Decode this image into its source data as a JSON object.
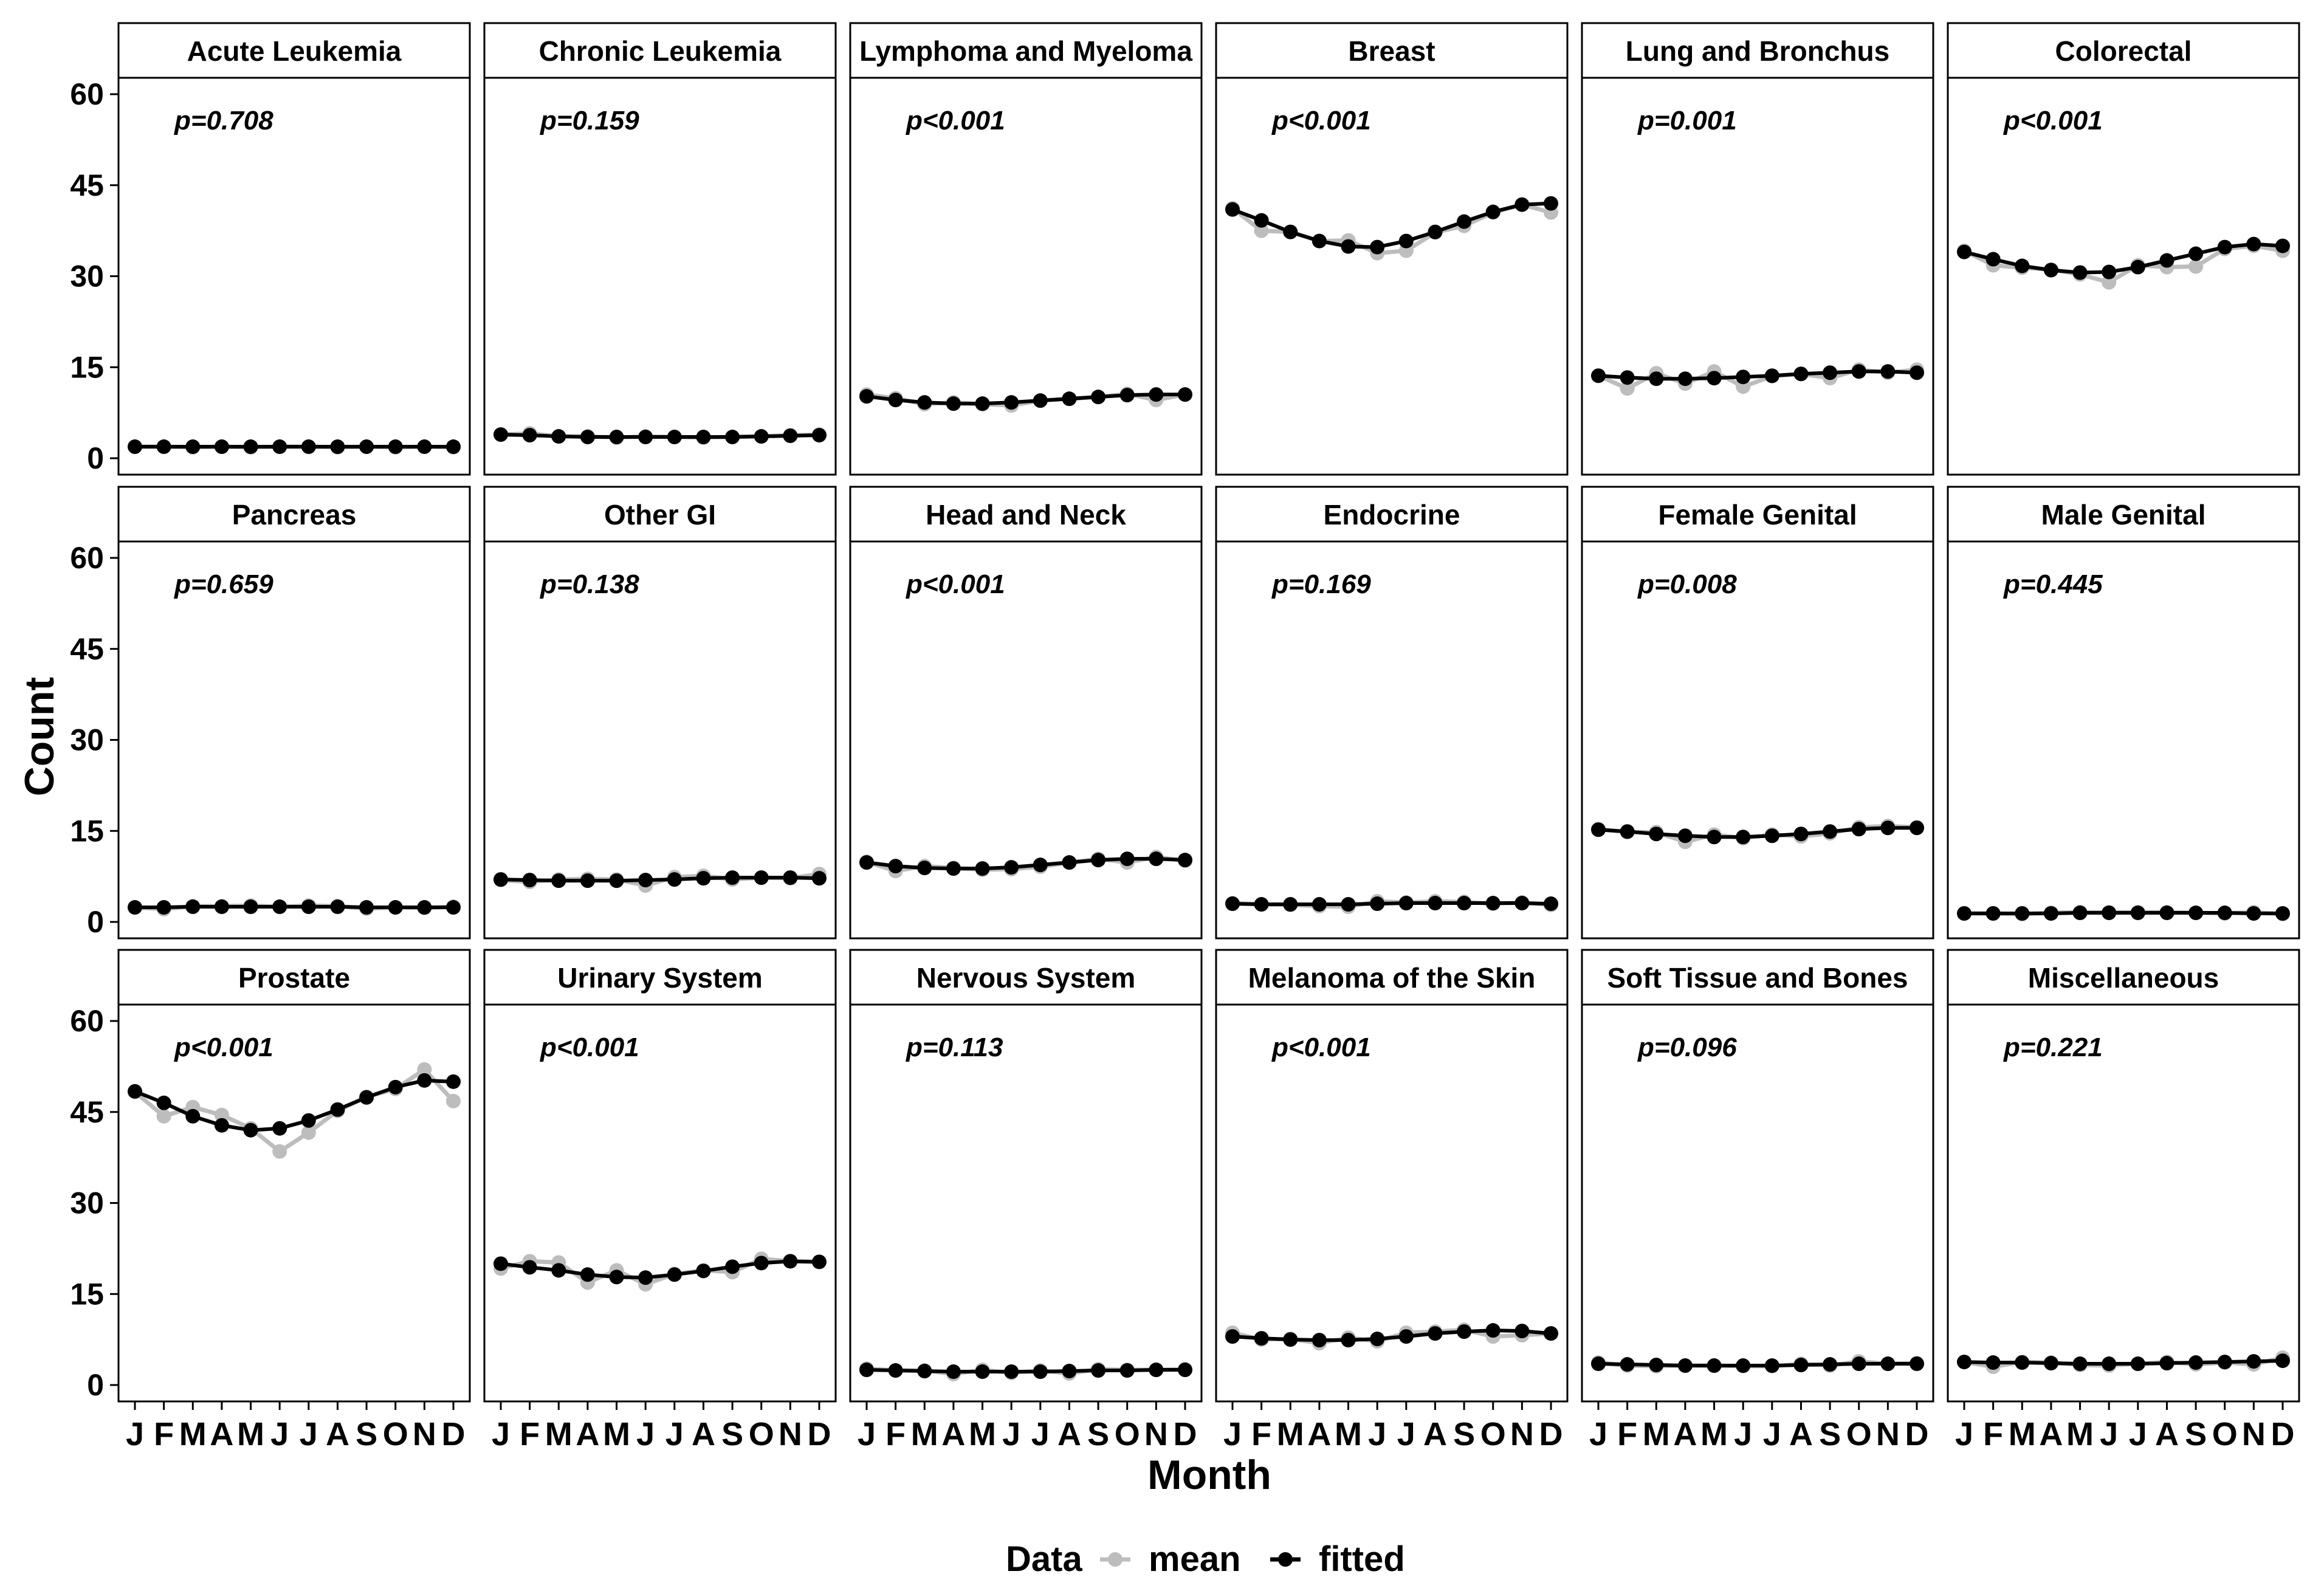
{
  "chart_data": {
    "type": "line",
    "xlabel": "Month",
    "ylabel": "Count",
    "ylim": [
      0,
      60
    ],
    "yticks": [
      0,
      15,
      30,
      45,
      60
    ],
    "grid": false,
    "legend": {
      "title": "Data",
      "position": "bottom",
      "entries": [
        {
          "name": "mean",
          "color": "#bdbdbd"
        },
        {
          "name": "fitted",
          "color": "#000000"
        }
      ]
    },
    "months": [
      "J",
      "F",
      "M",
      "A",
      "M",
      "J",
      "J",
      "A",
      "S",
      "O",
      "N",
      "D"
    ],
    "panels": [
      {
        "title": "Acute Leukemia",
        "pvalue": "p=0.708",
        "mean": [
          1.9,
          1.9,
          1.8,
          1.9,
          1.8,
          1.9,
          1.9,
          1.8,
          1.9,
          1.8,
          1.9,
          1.8
        ],
        "fitted": [
          1.9,
          1.9,
          1.9,
          1.9,
          1.9,
          1.9,
          1.9,
          1.9,
          1.9,
          1.9,
          1.9,
          1.9
        ]
      },
      {
        "title": "Chronic Leukemia",
        "pvalue": "p=0.159",
        "mean": [
          3.9,
          4.1,
          3.6,
          3.6,
          3.4,
          3.6,
          3.5,
          3.4,
          3.5,
          3.6,
          3.8,
          3.9
        ],
        "fitted": [
          3.9,
          3.8,
          3.6,
          3.5,
          3.5,
          3.5,
          3.5,
          3.5,
          3.5,
          3.6,
          3.7,
          3.8
        ]
      },
      {
        "title": "Lymphoma and Myeloma",
        "pvalue": "p<0.001",
        "mean": [
          10.5,
          9.9,
          8.9,
          9.2,
          8.9,
          8.7,
          9.5,
          9.8,
          10.1,
          10.6,
          9.6,
          10.5
        ],
        "fitted": [
          10.2,
          9.6,
          9.2,
          9.0,
          9.0,
          9.2,
          9.5,
          9.8,
          10.1,
          10.4,
          10.5,
          10.5
        ]
      },
      {
        "title": "Breast",
        "pvalue": "p<0.001",
        "mean": [
          41.2,
          37.5,
          37.3,
          35.8,
          35.9,
          33.8,
          34.2,
          37.2,
          38.3,
          40.5,
          41.8,
          40.5
        ],
        "fitted": [
          41.0,
          39.2,
          37.3,
          35.8,
          34.9,
          34.8,
          35.8,
          37.3,
          39.0,
          40.6,
          41.8,
          42.0
        ]
      },
      {
        "title": "Lung and Bronchus",
        "pvalue": "p=0.001",
        "mean": [
          13.6,
          11.5,
          14.0,
          12.3,
          14.3,
          11.8,
          13.5,
          13.9,
          13.2,
          14.6,
          14.1,
          14.6
        ],
        "fitted": [
          13.6,
          13.3,
          13.1,
          13.1,
          13.2,
          13.4,
          13.6,
          13.9,
          14.1,
          14.3,
          14.3,
          14.1
        ]
      },
      {
        "title": "Colorectal",
        "pvalue": "p<0.001",
        "mean": [
          34.2,
          31.8,
          31.4,
          31.1,
          30.3,
          29.0,
          31.8,
          31.5,
          31.6,
          34.5,
          35.0,
          34.2
        ],
        "fitted": [
          34.0,
          32.8,
          31.7,
          31.0,
          30.6,
          30.7,
          31.5,
          32.6,
          33.7,
          34.8,
          35.3,
          35.0
        ]
      },
      {
        "title": "Pancreas",
        "pvalue": "p=0.659",
        "mean": [
          2.4,
          2.1,
          2.6,
          2.6,
          2.7,
          2.5,
          2.7,
          2.6,
          2.2,
          2.4,
          2.3,
          2.5
        ],
        "fitted": [
          2.4,
          2.4,
          2.5,
          2.5,
          2.5,
          2.5,
          2.5,
          2.5,
          2.4,
          2.4,
          2.4,
          2.4
        ]
      },
      {
        "title": "Other GI",
        "pvalue": "p=0.138",
        "mean": [
          6.9,
          6.6,
          7.0,
          7.1,
          7.0,
          6.0,
          7.4,
          7.6,
          7.0,
          7.3,
          7.2,
          7.9
        ],
        "fitted": [
          7.0,
          6.9,
          6.8,
          6.8,
          6.8,
          6.9,
          7.0,
          7.2,
          7.3,
          7.3,
          7.3,
          7.2
        ]
      },
      {
        "title": "Head and Neck",
        "pvalue": "p<0.001",
        "mean": [
          9.9,
          8.4,
          9.2,
          8.9,
          8.6,
          8.7,
          9.1,
          9.8,
          10.4,
          9.8,
          10.7,
          10.1
        ],
        "fitted": [
          9.8,
          9.2,
          8.9,
          8.8,
          8.8,
          9.0,
          9.4,
          9.8,
          10.2,
          10.4,
          10.4,
          10.2
        ]
      },
      {
        "title": "Endocrine",
        "pvalue": "p=0.169",
        "mean": [
          3.1,
          2.9,
          2.8,
          2.6,
          2.5,
          3.4,
          3.2,
          3.4,
          3.3,
          3.0,
          3.2,
          2.8
        ],
        "fitted": [
          3.0,
          2.9,
          2.9,
          2.9,
          2.9,
          3.0,
          3.1,
          3.1,
          3.1,
          3.1,
          3.1,
          3.0
        ]
      },
      {
        "title": "Female Genital",
        "pvalue": "p=0.008",
        "mean": [
          15.3,
          14.8,
          14.8,
          13.2,
          14.4,
          13.8,
          14.4,
          14.1,
          14.6,
          15.6,
          15.8,
          15.6
        ],
        "fitted": [
          15.2,
          14.9,
          14.5,
          14.2,
          14.0,
          14.0,
          14.2,
          14.5,
          14.9,
          15.3,
          15.5,
          15.5
        ]
      },
      {
        "title": "Male Genital",
        "pvalue": "p=0.445",
        "mean": [
          1.4,
          1.4,
          1.3,
          1.5,
          1.6,
          1.6,
          1.6,
          1.6,
          1.5,
          1.4,
          1.6,
          1.3
        ],
        "fitted": [
          1.4,
          1.4,
          1.4,
          1.4,
          1.5,
          1.5,
          1.5,
          1.5,
          1.5,
          1.5,
          1.4,
          1.4
        ]
      },
      {
        "title": "Prostate",
        "pvalue": "p<0.001",
        "mean": [
          48.3,
          44.3,
          45.8,
          44.5,
          42.3,
          38.5,
          41.6,
          45.2,
          47.5,
          48.8,
          52.0,
          46.8
        ],
        "fitted": [
          48.4,
          46.5,
          44.3,
          42.8,
          42.0,
          42.3,
          43.6,
          45.4,
          47.4,
          49.1,
          50.2,
          50.0
        ]
      },
      {
        "title": "Urinary System",
        "pvalue": "p<0.001",
        "mean": [
          19.2,
          20.4,
          20.2,
          16.9,
          18.9,
          16.6,
          18.3,
          18.9,
          18.6,
          20.8,
          20.4,
          20.3
        ],
        "fitted": [
          20.0,
          19.4,
          18.9,
          18.2,
          17.8,
          17.7,
          18.2,
          18.8,
          19.5,
          20.1,
          20.4,
          20.3
        ]
      },
      {
        "title": "Nervous System",
        "pvalue": "p=0.113",
        "mean": [
          2.7,
          2.4,
          2.4,
          1.8,
          2.5,
          2.0,
          2.4,
          1.9,
          2.6,
          2.5,
          2.5,
          2.6
        ],
        "fitted": [
          2.5,
          2.4,
          2.3,
          2.2,
          2.2,
          2.2,
          2.2,
          2.3,
          2.4,
          2.4,
          2.5,
          2.5
        ]
      },
      {
        "title": "Melanoma of the Skin",
        "pvalue": "p<0.001",
        "mean": [
          8.6,
          7.5,
          7.6,
          6.9,
          7.8,
          7.2,
          8.6,
          8.8,
          9.1,
          8.0,
          8.2,
          8.5
        ],
        "fitted": [
          8.0,
          7.7,
          7.5,
          7.4,
          7.4,
          7.6,
          8.0,
          8.5,
          8.8,
          9.0,
          8.9,
          8.5
        ]
      },
      {
        "title": "Soft Tissue and Bones",
        "pvalue": "p=0.096",
        "mean": [
          3.7,
          3.2,
          3.1,
          3.2,
          3.2,
          3.1,
          3.1,
          3.5,
          3.2,
          3.9,
          3.5,
          3.6
        ],
        "fitted": [
          3.5,
          3.4,
          3.3,
          3.2,
          3.2,
          3.2,
          3.2,
          3.3,
          3.4,
          3.5,
          3.5,
          3.5
        ]
      },
      {
        "title": "Miscellaneous",
        "pvalue": "p=0.221",
        "mean": [
          3.8,
          3.0,
          3.8,
          3.7,
          3.3,
          3.2,
          3.5,
          3.8,
          3.4,
          3.7,
          3.4,
          4.5
        ],
        "fitted": [
          3.8,
          3.7,
          3.7,
          3.6,
          3.5,
          3.5,
          3.5,
          3.6,
          3.7,
          3.8,
          3.9,
          4.0
        ]
      }
    ]
  }
}
